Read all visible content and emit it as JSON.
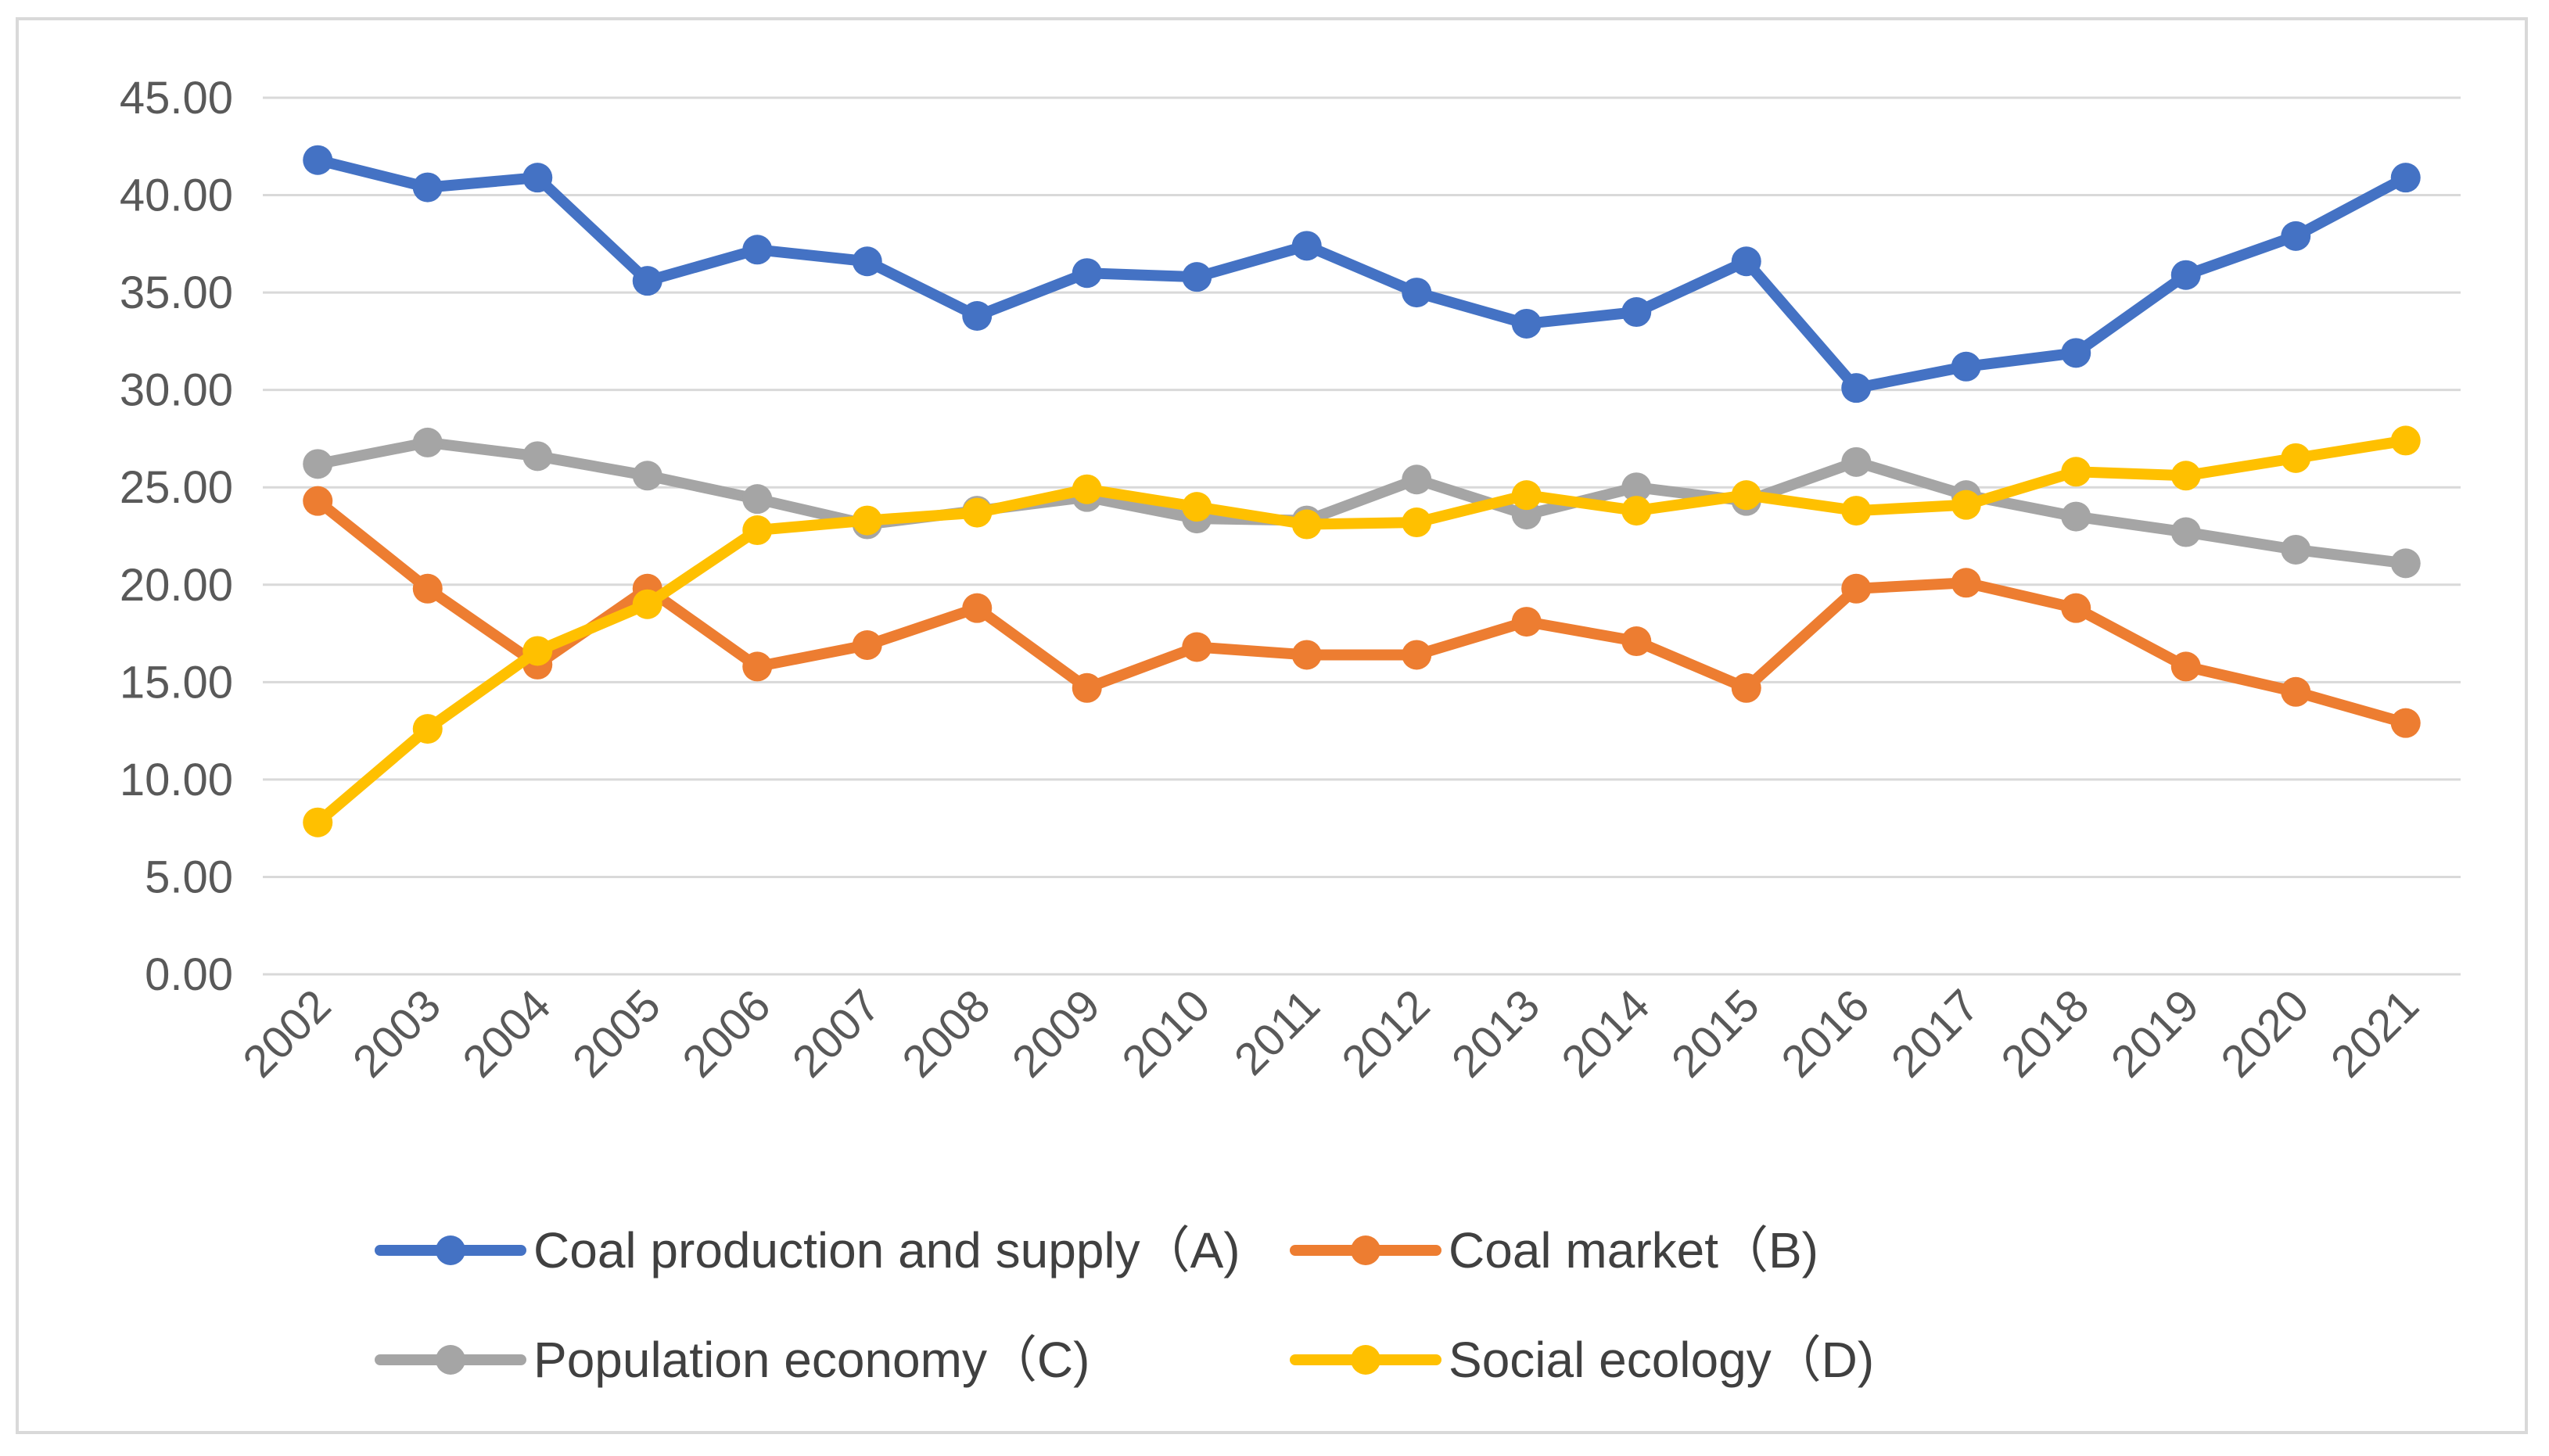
{
  "chart_data": {
    "type": "line",
    "title": "",
    "xlabel": "",
    "ylabel": "",
    "categories": [
      "2002",
      "2003",
      "2004",
      "2005",
      "2006",
      "2007",
      "2008",
      "2009",
      "2010",
      "2011",
      "2012",
      "2013",
      "2014",
      "2015",
      "2016",
      "2017",
      "2018",
      "2019",
      "2020",
      "2021"
    ],
    "ylim": [
      0,
      45
    ],
    "yticks": [
      "0.00",
      "5.00",
      "10.00",
      "15.00",
      "20.00",
      "25.00",
      "30.00",
      "35.00",
      "40.00",
      "45.00"
    ],
    "grid": true,
    "legend_position": "bottom",
    "series": [
      {
        "name": "Coal production and supply（A)",
        "color": "#4472c4",
        "values": [
          41.8,
          40.4,
          40.9,
          35.6,
          37.2,
          36.6,
          33.8,
          36.0,
          35.8,
          37.4,
          35.0,
          33.4,
          34.0,
          36.6,
          30.1,
          31.2,
          31.9,
          35.9,
          37.9,
          40.9
        ]
      },
      {
        "name": "Coal market（B)",
        "color": "#ed7d31",
        "values": [
          24.3,
          19.8,
          15.9,
          19.8,
          15.8,
          16.9,
          18.8,
          14.7,
          16.8,
          16.4,
          16.4,
          18.1,
          17.1,
          14.7,
          19.8,
          20.1,
          18.8,
          15.8,
          14.5,
          12.9
        ]
      },
      {
        "name": "Population economy（C)",
        "color": "#a5a5a5",
        "values": [
          26.2,
          27.3,
          26.6,
          25.6,
          24.4,
          23.1,
          23.8,
          24.5,
          23.4,
          23.3,
          25.4,
          23.6,
          25.0,
          24.3,
          26.3,
          24.6,
          23.5,
          22.7,
          21.8,
          21.1
        ]
      },
      {
        "name": "Social ecology（D)",
        "color": "#ffc000",
        "values": [
          7.8,
          12.6,
          16.6,
          19.0,
          22.8,
          23.3,
          23.7,
          24.9,
          24.0,
          23.1,
          23.2,
          24.6,
          23.8,
          24.6,
          23.8,
          24.1,
          25.8,
          25.6,
          26.5,
          27.4
        ]
      }
    ]
  }
}
